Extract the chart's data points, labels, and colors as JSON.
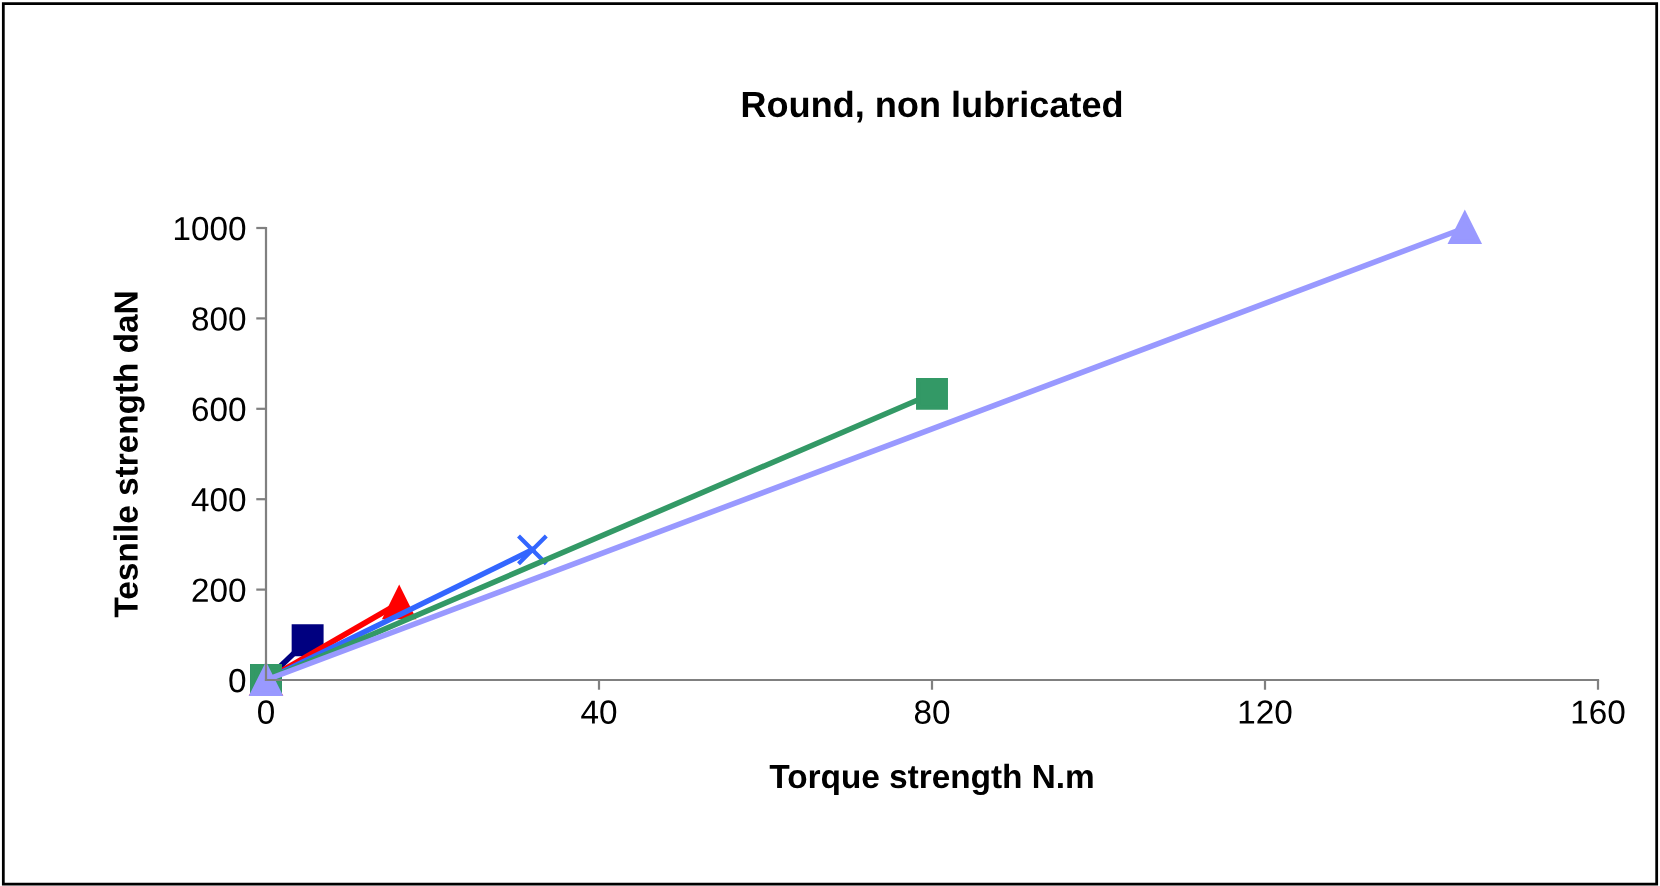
{
  "chart_data": {
    "type": "line",
    "title": "Round, non lubricated",
    "xlabel": "Torque strength N.m",
    "ylabel": "Tesnile strength daN",
    "series": [
      {
        "color": "#000080",
        "marker": "square",
        "x": [
          0,
          5
        ],
        "values": [
          0,
          88
        ]
      },
      {
        "color": "#ff0000",
        "marker": "triangle",
        "x": [
          0,
          16
        ],
        "values": [
          0,
          170
        ]
      },
      {
        "color": "#3366ff",
        "marker": "cross",
        "x": [
          0,
          32
        ],
        "values": [
          0,
          288
        ]
      },
      {
        "color": "#339966",
        "marker": "square",
        "x": [
          0,
          80
        ],
        "values": [
          0,
          633
        ]
      },
      {
        "color": "#9999ff",
        "marker": "triangle",
        "x": [
          0,
          144
        ],
        "values": [
          0,
          1000
        ]
      }
    ],
    "xlim": [
      0,
      160
    ],
    "xticks": [
      0,
      40,
      80,
      120,
      160
    ],
    "ylim": [
      0,
      1000
    ],
    "yticks": [
      0,
      200,
      400,
      600,
      800,
      1000
    ],
    "grid": false,
    "legend": false,
    "line_style": "solid"
  }
}
